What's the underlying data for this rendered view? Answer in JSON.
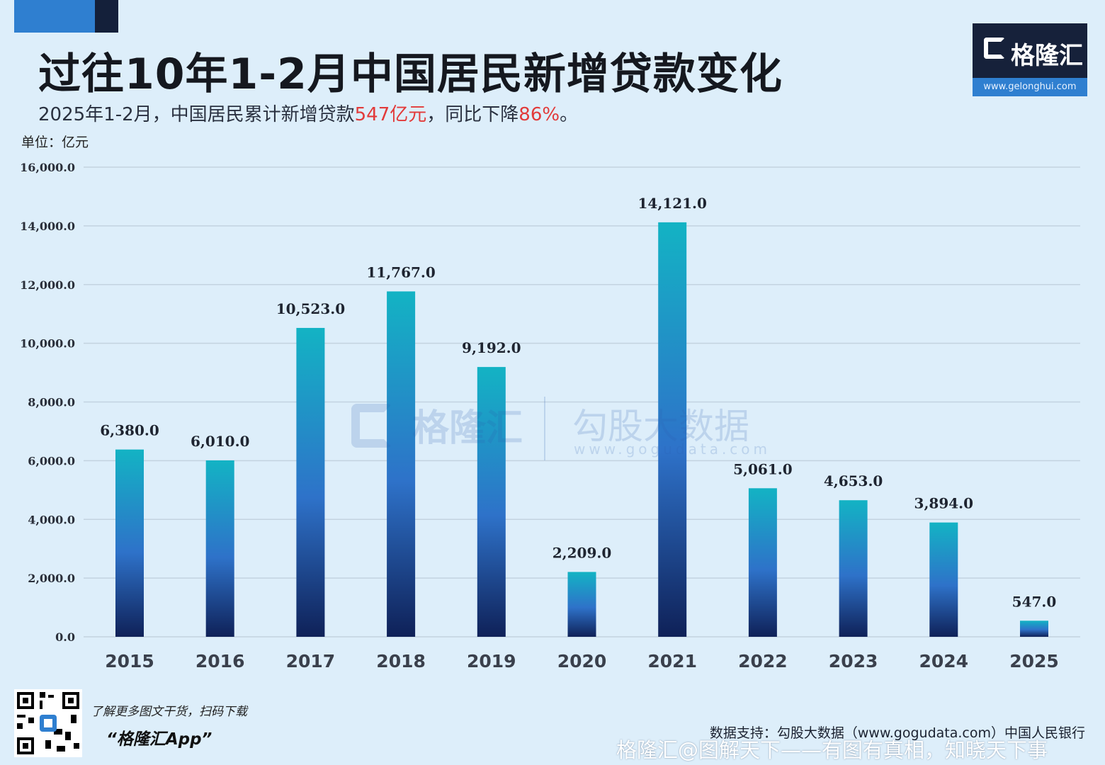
{
  "header": {
    "title": "过往10年1-2月中国居民新增贷款变化",
    "subtitle_pre": "2025年1-2月，中国居民累计新增贷款",
    "subtitle_hl1": "547亿元",
    "subtitle_mid": "，同比下降",
    "subtitle_hl2": "86%",
    "subtitle_post": "。",
    "unit": "单位：亿元"
  },
  "logo": {
    "name": "格隆汇",
    "url": "www.gelonghui.com"
  },
  "watermark": {
    "name": "格隆汇",
    "name2": "勾股大数据",
    "url2": "www.gogudata.com"
  },
  "footer": {
    "promo_line1": "了解更多图文干货，扫码下载",
    "promo_line2": "“格隆汇App”",
    "source": "数据支持：勾股大数据（www.gogudata.com）中国人民银行",
    "weibo": "格隆汇@图解天下——有图有真相，知晓天下事"
  },
  "colors": {
    "bar_top": "#13b3c4",
    "bar_mid": "#2e72c9",
    "bar_bottom": "#0f2158",
    "highlight": "#e23a3a",
    "grid": "#c3d3e0"
  },
  "chart_data": {
    "type": "bar",
    "title": "过往10年1-2月中国居民新增贷款变化",
    "ylabel": "单位：亿元",
    "xlabel": "",
    "categories": [
      "2015",
      "2016",
      "2017",
      "2018",
      "2019",
      "2020",
      "2021",
      "2022",
      "2023",
      "2024",
      "2025"
    ],
    "values": [
      6380.0,
      6010.0,
      10523.0,
      11767.0,
      9192.0,
      2209.0,
      14121.0,
      5061.0,
      4653.0,
      3894.0,
      547.0
    ],
    "value_labels": [
      "6,380.0",
      "6,010.0",
      "10,523.0",
      "11,767.0",
      "9,192.0",
      "2,209.0",
      "14,121.0",
      "5,061.0",
      "4,653.0",
      "3,894.0",
      "547.0"
    ],
    "ylim": [
      0,
      16000
    ],
    "yticks": [
      0,
      2000,
      4000,
      6000,
      8000,
      10000,
      12000,
      14000,
      16000
    ],
    "ytick_labels": [
      "0.0",
      "2,000.0",
      "4,000.0",
      "6,000.0",
      "8,000.0",
      "10,000.0",
      "12,000.0",
      "14,000.0",
      "16,000.0"
    ],
    "grid": true
  }
}
